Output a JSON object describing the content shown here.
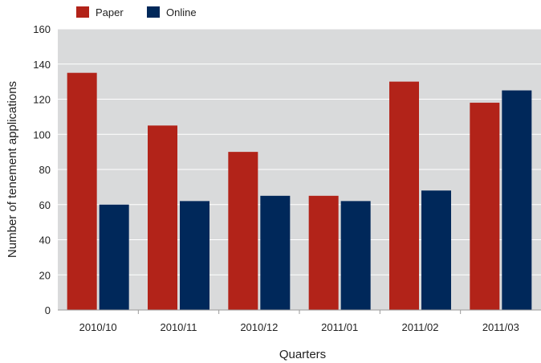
{
  "chart_data": {
    "type": "bar",
    "title": "",
    "xlabel": "Quarters",
    "ylabel": "Number of tenement applications",
    "categories": [
      "2010/10",
      "2010/11",
      "2010/12",
      "2011/01",
      "2011/02",
      "2011/03"
    ],
    "series": [
      {
        "name": "Paper",
        "color": "#b22319",
        "values": [
          135,
          105,
          90,
          65,
          130,
          118
        ]
      },
      {
        "name": "Online",
        "color": "#00285a",
        "values": [
          60,
          62,
          65,
          62,
          68,
          125
        ]
      }
    ],
    "ylim": [
      0,
      160
    ],
    "yticks": [
      "0",
      "20",
      "40",
      "60",
      "80",
      "100",
      "120",
      "140",
      "160"
    ],
    "grid": true,
    "legend_position": "top-left",
    "plot_background": "#d9dadb",
    "grid_color": "#ffffff"
  }
}
